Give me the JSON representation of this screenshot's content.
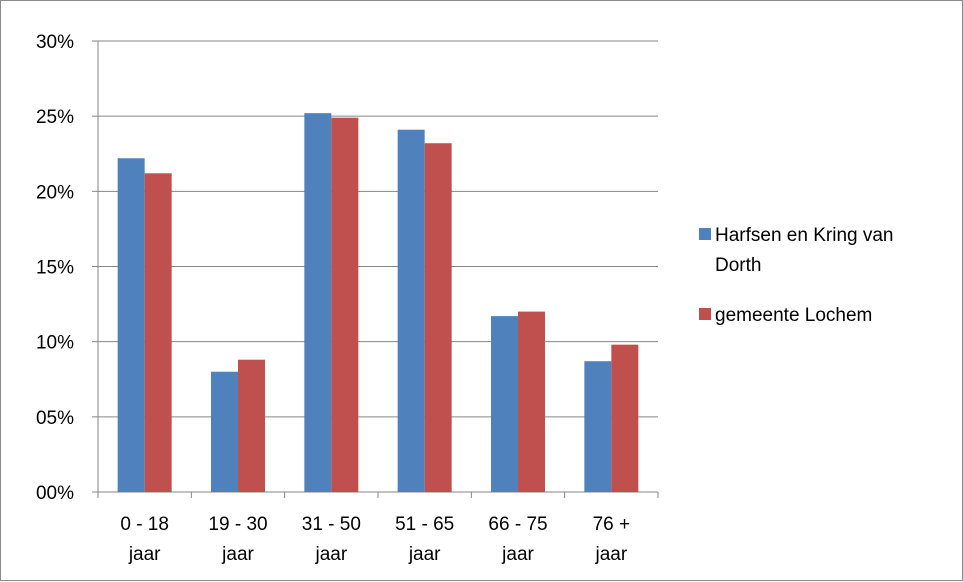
{
  "chart_data": {
    "type": "bar",
    "title": "",
    "xlabel": "",
    "ylabel": "",
    "ylim": [
      0,
      30
    ],
    "y_tick_labels": [
      "00%",
      "05%",
      "10%",
      "15%",
      "20%",
      "25%",
      "30%"
    ],
    "y_tick_values": [
      0,
      5,
      10,
      15,
      20,
      25,
      30
    ],
    "categories": [
      [
        "0 - 18",
        "jaar"
      ],
      [
        "19 - 30",
        "jaar"
      ],
      [
        "31 - 50",
        "jaar"
      ],
      [
        "51 - 65",
        "jaar"
      ],
      [
        "66 - 75",
        "jaar"
      ],
      [
        "76 +",
        "jaar"
      ]
    ],
    "series": [
      {
        "name": "Harfsen en Kring van Dorth",
        "name_lines": [
          "Harfsen en Kring van",
          "Dorth"
        ],
        "color": "#4f81bd",
        "values": [
          22.2,
          8.0,
          25.2,
          24.1,
          11.7,
          8.7
        ]
      },
      {
        "name": "gemeente Lochem",
        "name_lines": [
          "gemeente Lochem"
        ],
        "color": "#c0504d",
        "values": [
          21.2,
          8.8,
          24.9,
          23.2,
          12.0,
          9.8
        ]
      }
    ],
    "grid": true,
    "legend_position": "right",
    "gridline_color": "#868686",
    "axis_color": "#868686"
  }
}
